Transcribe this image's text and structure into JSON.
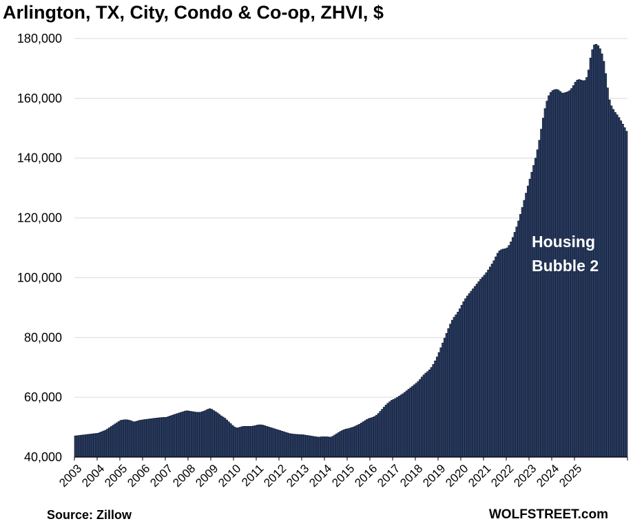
{
  "title": "Arlington, TX, City, Condo & Co-op, ZHVI, $",
  "source": "Source: Zillow",
  "site": "WOLFSTREET.com",
  "colors": {
    "bar_fill": "#2b3d63",
    "bar_edge": "#0d1526",
    "grid": "#d9d9d9",
    "axis": "#000000",
    "annotation_text": "#ffffff"
  },
  "chart_data": {
    "type": "bar",
    "title": "Arlington, TX, City, Condo & Co-op, ZHVI, $",
    "xlabel": "",
    "ylabel": "",
    "ylim": [
      40000,
      180000
    ],
    "y_ticks": [
      "40,000",
      "60,000",
      "80,000",
      "100,000",
      "120,000",
      "140,000",
      "160,000",
      "180,000"
    ],
    "y_tick_values": [
      40000,
      60000,
      80000,
      100000,
      120000,
      140000,
      160000,
      180000
    ],
    "x_tick_labels": [
      "2003",
      "2004",
      "2005",
      "2006",
      "2007",
      "2008",
      "2009",
      "2010",
      "2011",
      "2012",
      "2013",
      "2014",
      "2015",
      "2016",
      "2017",
      "2018",
      "2019",
      "2020",
      "2021",
      "2022",
      "2023",
      "2024",
      "2025"
    ],
    "frequency": "monthly",
    "start": "2003-01",
    "annotation": {
      "lines": [
        "Housing",
        "Bubble 2"
      ],
      "near": "2024-01"
    },
    "series": [
      {
        "name": "ZHVI",
        "values": [
          47100,
          47175,
          47250,
          47325,
          47400,
          47475,
          47550,
          47625,
          47700,
          47775,
          47850,
          47925,
          48000,
          48250,
          48500,
          48750,
          49000,
          49417,
          49833,
          50250,
          50667,
          51083,
          51500,
          51917,
          52300,
          52400,
          52500,
          52500,
          52400,
          52250,
          52000,
          51800,
          51900,
          52100,
          52300,
          52400,
          52500,
          52583,
          52667,
          52750,
          52833,
          52917,
          53000,
          53067,
          53133,
          53200,
          53250,
          53300,
          53300,
          53517,
          53733,
          53950,
          54167,
          54383,
          54600,
          54800,
          55000,
          55200,
          55400,
          55500,
          55400,
          55300,
          55200,
          55100,
          55000,
          55000,
          55000,
          55200,
          55400,
          55700,
          56000,
          56200,
          56000,
          55600,
          55200,
          54800,
          54300,
          53800,
          53400,
          53000,
          52400,
          51800,
          51200,
          50600,
          50100,
          49800,
          49800,
          50000,
          50200,
          50300,
          50300,
          50300,
          50300,
          50300,
          50400,
          50500,
          50700,
          50800,
          50800,
          50700,
          50500,
          50300,
          50100,
          49900,
          49700,
          49500,
          49300,
          49100,
          48900,
          48700,
          48500,
          48300,
          48100,
          47900,
          47800,
          47700,
          47650,
          47600,
          47550,
          47500,
          47500,
          47400,
          47300,
          47200,
          47100,
          47000,
          46900,
          46800,
          46700,
          46700,
          46800,
          46800,
          46800,
          46800,
          46700,
          46700,
          47000,
          47400,
          47800,
          48200,
          48600,
          48900,
          49200,
          49400,
          49500,
          49700,
          49900,
          50100,
          50400,
          50700,
          51000,
          51400,
          51800,
          52200,
          52600,
          52900,
          53100,
          53300,
          53600,
          54000,
          54600,
          55300,
          56000,
          56700,
          57400,
          58000,
          58500,
          59000,
          59300,
          59600,
          60000,
          60400,
          60800,
          61200,
          61700,
          62200,
          62700,
          63200,
          63700,
          64200,
          64700,
          65300,
          66000,
          66800,
          67500,
          68100,
          68600,
          69200,
          70000,
          71000,
          72200,
          73500,
          75000,
          76600,
          78200,
          79800,
          81400,
          83000,
          84500,
          85800,
          86800,
          87600,
          88500,
          89600,
          90800,
          92000,
          93000,
          93900,
          94700,
          95500,
          96300,
          97100,
          97900,
          98700,
          99500,
          100200,
          100900,
          101700,
          102600,
          103600,
          104600,
          105700,
          107000,
          108200,
          109000,
          109400,
          109600,
          109700,
          110000,
          110800,
          112000,
          113500,
          115200,
          117000,
          119000,
          121200,
          123500,
          125900,
          128300,
          130700,
          133000,
          135300,
          137600,
          140000,
          142800,
          146000,
          149700,
          153400,
          156600,
          159100,
          160900,
          162000,
          162600,
          162900,
          163000,
          162800,
          162300,
          161800,
          161800,
          162000,
          162200,
          162600,
          163300,
          164300,
          165400,
          166100,
          166300,
          166100,
          165900,
          166000,
          167000,
          169500,
          173500,
          176300,
          177900,
          178100,
          177600,
          176600,
          174900,
          172400,
          168300,
          163500,
          159500,
          157500,
          156300,
          155300,
          154500,
          153600,
          152500,
          151400,
          150200,
          149000
        ]
      }
    ]
  }
}
